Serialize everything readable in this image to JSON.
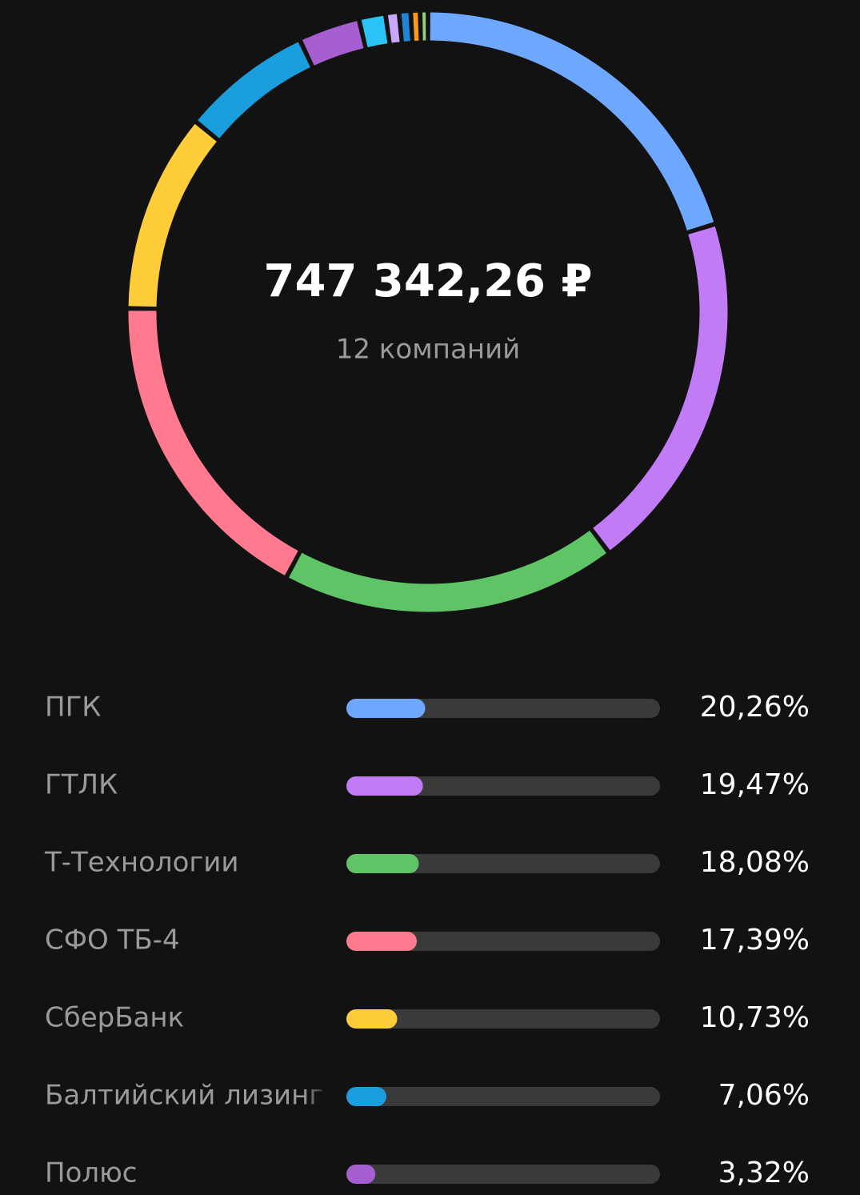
{
  "chart_data": {
    "type": "donut",
    "center_value": "747 342,26 ₽",
    "center_label": "12 компаний",
    "categories": [
      "ПГК",
      "ГТЛК",
      "Т-Технологии",
      "СФО ТБ-4",
      "СберБанк",
      "Балтийский лизинг",
      "Полюс",
      null,
      null,
      null,
      null,
      null
    ],
    "values": [
      20.26,
      19.47,
      18.08,
      17.39,
      10.73,
      7.06,
      3.32,
      1.43,
      0.72,
      0.62,
      0.5,
      0.42
    ],
    "value_labels": [
      "20,26%",
      "19,47%",
      "18,08%",
      "17,39%",
      "10,73%",
      "7,06%",
      "3,32%",
      null,
      null,
      null,
      null,
      null
    ],
    "colors": [
      "#6ea8fe",
      "#c17bf5",
      "#5ec466",
      "#ff7a8f",
      "#ffcc3a",
      "#1a9ede",
      "#a55fd1",
      "#2bc3f5",
      "#c9a6ff",
      "#1e88d6",
      "#ff9a1f",
      "#8fd47a"
    ]
  }
}
